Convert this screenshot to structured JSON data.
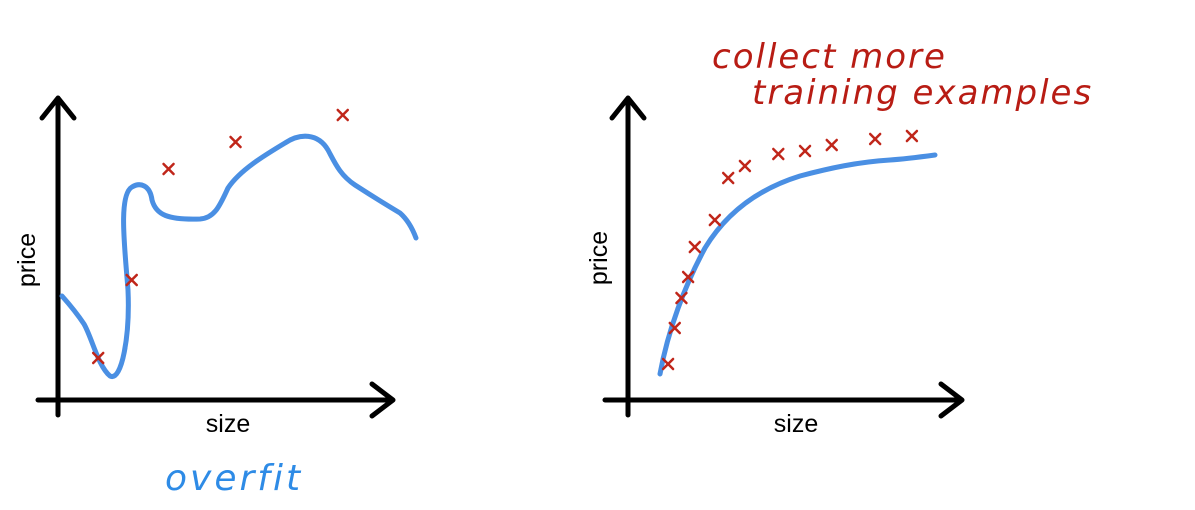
{
  "colors": {
    "curve": "#4a8fe3",
    "mark": "#c0261a",
    "note_red": "#b81c14",
    "note_blue": "#2e8be6"
  },
  "panels": [
    {
      "id": "overfit",
      "xlabel": "size",
      "ylabel": "price",
      "caption": "overfit",
      "points": [
        [
          0.12,
          0.14
        ],
        [
          0.22,
          0.4
        ],
        [
          0.33,
          0.77
        ],
        [
          0.53,
          0.86
        ],
        [
          0.85,
          0.95
        ]
      ]
    },
    {
      "id": "more-data",
      "xlabel": "size",
      "ylabel": "price",
      "caption_lines": [
        "collect more",
        "training examples"
      ],
      "points": [
        [
          0.12,
          0.12
        ],
        [
          0.14,
          0.24
        ],
        [
          0.16,
          0.34
        ],
        [
          0.18,
          0.41
        ],
        [
          0.2,
          0.51
        ],
        [
          0.26,
          0.6
        ],
        [
          0.3,
          0.74
        ],
        [
          0.35,
          0.78
        ],
        [
          0.45,
          0.82
        ],
        [
          0.53,
          0.83
        ],
        [
          0.61,
          0.85
        ],
        [
          0.74,
          0.87
        ],
        [
          0.85,
          0.88
        ]
      ]
    }
  ]
}
